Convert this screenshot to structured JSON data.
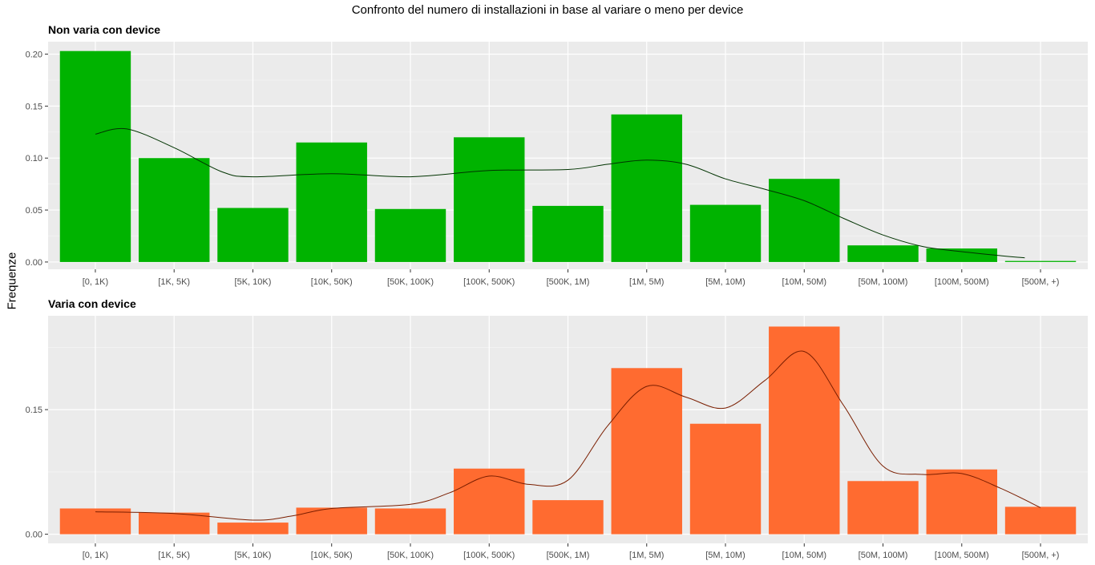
{
  "title": "Confronto del numero di installazioni in base al variare o meno per device",
  "ylabel": "Frequenze",
  "chart_data": [
    {
      "type": "bar",
      "title": "Non varia con device",
      "color": "#00b300",
      "line_color": "#003300",
      "categories": [
        "[0, 1K)",
        "[1K, 5K)",
        "[5K, 10K)",
        "[10K, 50K)",
        "[50K, 100K)",
        "[100K, 500K)",
        "[500K, 1M)",
        "[1M, 5M)",
        "[5M, 10M)",
        "[10M, 50M)",
        "[50M, 100M)",
        "[100M, 500M)",
        "[500M, +)"
      ],
      "values": [
        0.203,
        0.1,
        0.052,
        0.115,
        0.051,
        0.12,
        0.054,
        0.142,
        0.055,
        0.08,
        0.016,
        0.013,
        0.001
      ],
      "smooth_x": [
        1,
        1.4,
        2,
        2.6,
        3,
        4,
        5,
        6,
        7,
        7.5,
        8,
        8.5,
        9,
        9.5,
        10,
        10.5,
        11,
        11.5,
        12,
        12.5,
        12.8
      ],
      "smooth_y": [
        0.123,
        0.128,
        0.11,
        0.087,
        0.082,
        0.085,
        0.082,
        0.088,
        0.089,
        0.094,
        0.098,
        0.094,
        0.08,
        0.07,
        0.059,
        0.042,
        0.026,
        0.015,
        0.01,
        0.006,
        0.004
      ],
      "yticks": [
        0.0,
        0.05,
        0.1,
        0.15,
        0.2
      ],
      "ytick_labels": [
        "0.00",
        "0.05",
        "0.10",
        "0.15",
        "0.20"
      ],
      "ylim": [
        -0.007,
        0.212
      ]
    },
    {
      "type": "bar",
      "title": "Varia con device",
      "color": "#ff6b30",
      "line_color": "#7a1e00",
      "categories": [
        "[0, 1K)",
        "[1K, 5K)",
        "[5K, 10K)",
        "[10K, 50K)",
        "[50K, 100K)",
        "[100K, 500K)",
        "[500K, 1M)",
        "[1M, 5M)",
        "[5M, 10M)",
        "[10M, 50M)",
        "[50M, 100M)",
        "[100M, 500M)",
        "[500M, +)"
      ],
      "values": [
        0.031,
        0.026,
        0.014,
        0.032,
        0.031,
        0.079,
        0.041,
        0.2,
        0.133,
        0.25,
        0.064,
        0.078,
        0.033
      ],
      "smooth_x": [
        1,
        2,
        3,
        3.5,
        4,
        5,
        5.5,
        6,
        6.5,
        7,
        7.5,
        8,
        8.5,
        9,
        9.5,
        10,
        10.5,
        11,
        11.5,
        12,
        12.5,
        13
      ],
      "smooth_y": [
        0.027,
        0.025,
        0.017,
        0.022,
        0.031,
        0.036,
        0.05,
        0.07,
        0.06,
        0.065,
        0.13,
        0.178,
        0.165,
        0.152,
        0.185,
        0.22,
        0.155,
        0.082,
        0.072,
        0.073,
        0.055,
        0.032
      ],
      "yticks": [
        0.0,
        0.15
      ],
      "ytick_labels": [
        "0.00",
        "0.15"
      ],
      "ylim": [
        -0.011,
        0.263
      ]
    }
  ]
}
